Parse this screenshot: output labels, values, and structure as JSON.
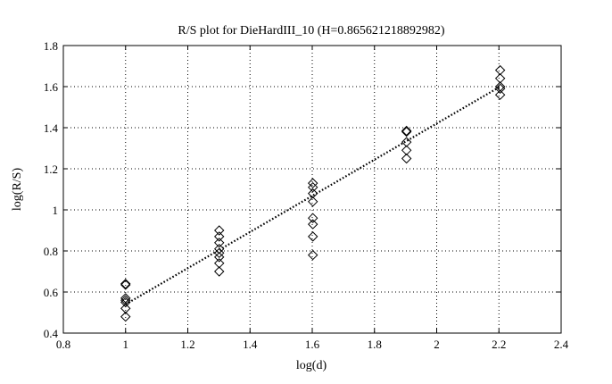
{
  "chart_data": {
    "type": "scatter",
    "title": "R/S plot for DieHardIII_10 (H=0.865621218892982)",
    "xlabel": "log(d)",
    "ylabel": "log(R/S)",
    "xlim": [
      0.8,
      2.4
    ],
    "ylim": [
      0.4,
      1.8
    ],
    "xticks": [
      0.8,
      1,
      1.2,
      1.4,
      1.6,
      1.8,
      2,
      2.2,
      2.4
    ],
    "xtick_labels": [
      "0.8",
      "1",
      "1.2",
      "1.4",
      "1.6",
      "1.8",
      "2",
      "2.2",
      "2.4"
    ],
    "yticks": [
      0.4,
      0.6,
      0.8,
      1,
      1.2,
      1.4,
      1.6,
      1.8
    ],
    "ytick_labels": [
      "0.4",
      "0.6",
      "0.8",
      "1",
      "1.2",
      "1.4",
      "1.6",
      "1.8"
    ],
    "grid": true,
    "marker": "diamond",
    "series": [
      {
        "points": [
          [
            1.0,
            0.64
          ],
          [
            1.0,
            0.635
          ],
          [
            1.0,
            0.57
          ],
          [
            1.0,
            0.56
          ],
          [
            1.0,
            0.55
          ],
          [
            1.0,
            0.52
          ],
          [
            1.0,
            0.48
          ],
          [
            1.301,
            0.9
          ],
          [
            1.301,
            0.87
          ],
          [
            1.301,
            0.84
          ],
          [
            1.301,
            0.81
          ],
          [
            1.301,
            0.79
          ],
          [
            1.301,
            0.77
          ],
          [
            1.301,
            0.74
          ],
          [
            1.301,
            0.7
          ],
          [
            1.602,
            1.13
          ],
          [
            1.602,
            1.11
          ],
          [
            1.602,
            1.08
          ],
          [
            1.602,
            1.04
          ],
          [
            1.602,
            0.96
          ],
          [
            1.602,
            0.93
          ],
          [
            1.602,
            0.87
          ],
          [
            1.602,
            0.78
          ],
          [
            1.903,
            1.385
          ],
          [
            1.903,
            1.38
          ],
          [
            1.903,
            1.33
          ],
          [
            1.903,
            1.29
          ],
          [
            1.903,
            1.25
          ],
          [
            2.204,
            1.68
          ],
          [
            2.204,
            1.64
          ],
          [
            2.204,
            1.6
          ],
          [
            2.204,
            1.59
          ],
          [
            2.204,
            1.56
          ]
        ]
      }
    ],
    "fit_line": {
      "style": "dotted",
      "points": [
        [
          1.0,
          0.54
        ],
        [
          2.204,
          1.6
        ]
      ]
    }
  }
}
